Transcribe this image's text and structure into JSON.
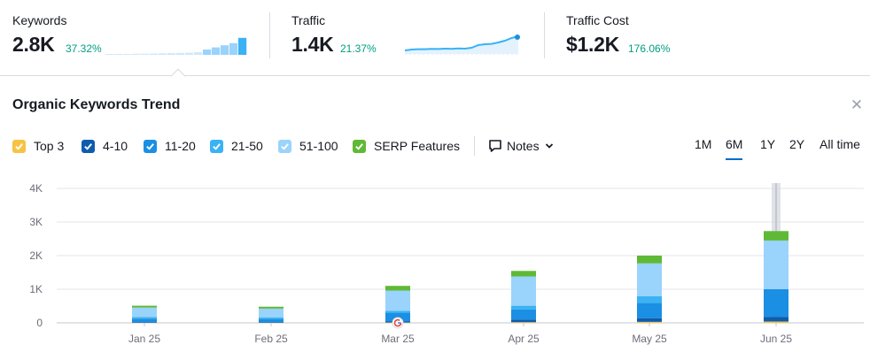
{
  "metrics": [
    {
      "label": "Keywords",
      "value": "2.8K",
      "delta": "37.32%"
    },
    {
      "label": "Traffic",
      "value": "1.4K",
      "delta": "21.37%"
    },
    {
      "label": "Traffic Cost",
      "value": "$1.2K",
      "delta": "176.06%"
    }
  ],
  "sparklines": {
    "keywords_bars": [
      0.04,
      0.04,
      0.04,
      0.05,
      0.05,
      0.06,
      0.07,
      0.08,
      0.09,
      0.1,
      0.12,
      0.25,
      0.35,
      0.45,
      0.55,
      0.8
    ],
    "traffic_line": [
      0.15,
      0.2,
      0.22,
      0.22,
      0.24,
      0.23,
      0.25,
      0.24,
      0.26,
      0.25,
      0.3,
      0.45,
      0.5,
      0.52,
      0.6,
      0.7,
      0.85,
      0.95
    ]
  },
  "panel": {
    "title": "Organic Keywords Trend",
    "close_icon": "close-icon"
  },
  "legend": [
    {
      "label": "Top 3",
      "color": "#f6c343"
    },
    {
      "label": "4-10",
      "color": "#0e5cad"
    },
    {
      "label": "11-20",
      "color": "#1a8fe3"
    },
    {
      "label": "21-50",
      "color": "#3ab2f4"
    },
    {
      "label": "51-100",
      "color": "#9ad3fb"
    },
    {
      "label": "SERP Features",
      "color": "#5fb936"
    }
  ],
  "notes": {
    "label": "Notes",
    "icon": "note-icon",
    "dropdown_icon": "chevron-down-icon"
  },
  "periods": [
    {
      "label": "1M",
      "active": false
    },
    {
      "label": "6M",
      "active": true
    },
    {
      "label": "1Y",
      "active": false
    },
    {
      "label": "2Y",
      "active": false
    },
    {
      "label": "All time",
      "active": false
    }
  ],
  "chart_data": {
    "type": "bar",
    "stacked": true,
    "categories": [
      "Jan 25",
      "Feb 25",
      "Mar 25",
      "Apr 25",
      "May 25",
      "Jun 25"
    ],
    "series": [
      {
        "name": "Top 3",
        "values": [
          5,
          5,
          10,
          20,
          30,
          40
        ]
      },
      {
        "name": "4-10",
        "values": [
          20,
          20,
          40,
          80,
          110,
          140
        ]
      },
      {
        "name": "11-20",
        "values": [
          100,
          90,
          250,
          300,
          450,
          820
        ]
      },
      {
        "name": "21-50",
        "values": [
          50,
          50,
          60,
          110,
          200,
          0
        ]
      },
      {
        "name": "51-100",
        "values": [
          280,
          260,
          600,
          870,
          980,
          1450
        ]
      },
      {
        "name": "SERP Features",
        "values": [
          55,
          55,
          140,
          165,
          230,
          280
        ]
      }
    ],
    "ylim": [
      0,
      4000
    ],
    "yticks": [
      "0",
      "1K",
      "2K",
      "3K",
      "4K"
    ],
    "grid": true,
    "event_marker_category": "Mar 25",
    "event_marker_icon": "google-icon",
    "highlighted_category": "Jun 25"
  }
}
